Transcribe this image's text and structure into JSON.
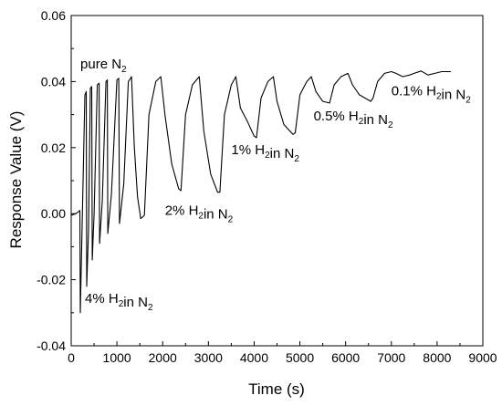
{
  "chart_data": {
    "type": "line",
    "xlabel": "Time (s)",
    "ylabel": "Response Value (V)",
    "xlim": [
      0,
      9000
    ],
    "ylim": [
      -0.04,
      0.06
    ],
    "xticks": [
      "0",
      "1000",
      "2000",
      "3000",
      "4000",
      "5000",
      "6000",
      "7000",
      "8000",
      "9000"
    ],
    "yticks": [
      "-0.04",
      "-0.02",
      "0.00",
      "0.02",
      "0.04",
      "0.06"
    ],
    "grid": false,
    "annotations": [
      {
        "id": "pure",
        "prefix": "pure N",
        "sub1": "2",
        "middle": "",
        "sub2": "",
        "x": 200,
        "y": 0.044
      },
      {
        "id": "4pct",
        "prefix": "4% H",
        "sub1": "2",
        "middle": "in N",
        "sub2": "2",
        "x": 300,
        "y": -0.027
      },
      {
        "id": "2pct",
        "prefix": "2% H",
        "sub1": "2",
        "middle": "in N",
        "sub2": "2",
        "x": 2050,
        "y": -0.0004
      },
      {
        "id": "1pct",
        "prefix": "1% H",
        "sub1": "2",
        "middle": "in N",
        "sub2": "2",
        "x": 3500,
        "y": 0.018
      },
      {
        "id": "05pct",
        "prefix": "0.5% H",
        "sub1": "2",
        "middle": "in N",
        "sub2": "2",
        "x": 5300,
        "y": 0.0282
      },
      {
        "id": "01pct",
        "prefix": "0.1% H",
        "sub1": "2",
        "middle": "in N",
        "sub2": "2",
        "x": 7000,
        "y": 0.0358
      }
    ],
    "series": [
      {
        "points": [
          [
            0,
            -0.0005
          ],
          [
            100,
            0
          ],
          [
            150,
            0.0005
          ],
          [
            190,
            0.001
          ],
          [
            200,
            -0.03
          ],
          [
            230,
            -0.01
          ],
          [
            300,
            0.036
          ],
          [
            330,
            0.037
          ],
          [
            340,
            -0.022
          ],
          [
            380,
            -0.005
          ],
          [
            420,
            0.038
          ],
          [
            450,
            0.0385
          ],
          [
            460,
            -0.014
          ],
          [
            500,
            0.0
          ],
          [
            570,
            0.039
          ],
          [
            610,
            0.0395
          ],
          [
            620,
            -0.009
          ],
          [
            680,
            0.004
          ],
          [
            760,
            0.04
          ],
          [
            790,
            0.0405
          ],
          [
            800,
            -0.006
          ],
          [
            880,
            0.006
          ],
          [
            1000,
            0.0405
          ],
          [
            1040,
            0.041
          ],
          [
            1055,
            -0.003
          ],
          [
            1150,
            0.009
          ],
          [
            1250,
            0.04
          ],
          [
            1300,
            0.041
          ],
          [
            1320,
            0.0415
          ],
          [
            1380,
            0.02
          ],
          [
            1450,
            0.005
          ],
          [
            1520,
            -0.0015
          ],
          [
            1600,
            -0.0005
          ],
          [
            1700,
            0.03
          ],
          [
            1850,
            0.04
          ],
          [
            1960,
            0.0415
          ],
          [
            2050,
            0.03
          ],
          [
            2200,
            0.015
          ],
          [
            2350,
            0.0075
          ],
          [
            2400,
            0.007
          ],
          [
            2500,
            0.03
          ],
          [
            2650,
            0.039
          ],
          [
            2800,
            0.0415
          ],
          [
            2900,
            0.025
          ],
          [
            3050,
            0.012
          ],
          [
            3200,
            0.0065
          ],
          [
            3250,
            0.0065
          ],
          [
            3350,
            0.03
          ],
          [
            3500,
            0.039
          ],
          [
            3600,
            0.0415
          ],
          [
            3700,
            0.032
          ],
          [
            3850,
            0.028
          ],
          [
            4000,
            0.0235
          ],
          [
            4050,
            0.023
          ],
          [
            4150,
            0.035
          ],
          [
            4300,
            0.04
          ],
          [
            4420,
            0.0415
          ],
          [
            4500,
            0.034
          ],
          [
            4650,
            0.027
          ],
          [
            4850,
            0.024
          ],
          [
            4900,
            0.0245
          ],
          [
            5000,
            0.036
          ],
          [
            5150,
            0.04
          ],
          [
            5250,
            0.0415
          ],
          [
            5350,
            0.037
          ],
          [
            5500,
            0.034
          ],
          [
            5650,
            0.0335
          ],
          [
            5750,
            0.039
          ],
          [
            5900,
            0.0415
          ],
          [
            6050,
            0.0425
          ],
          [
            6150,
            0.039
          ],
          [
            6300,
            0.036
          ],
          [
            6550,
            0.034
          ],
          [
            6600,
            0.035
          ],
          [
            6700,
            0.04
          ],
          [
            6850,
            0.0425
          ],
          [
            7000,
            0.043
          ],
          [
            7100,
            0.0425
          ],
          [
            7250,
            0.0415
          ],
          [
            7400,
            0.042
          ],
          [
            7500,
            0.0425
          ],
          [
            7650,
            0.0432
          ],
          [
            7800,
            0.042
          ],
          [
            7950,
            0.0425
          ],
          [
            8100,
            0.043
          ],
          [
            8300,
            0.043
          ]
        ]
      }
    ]
  }
}
